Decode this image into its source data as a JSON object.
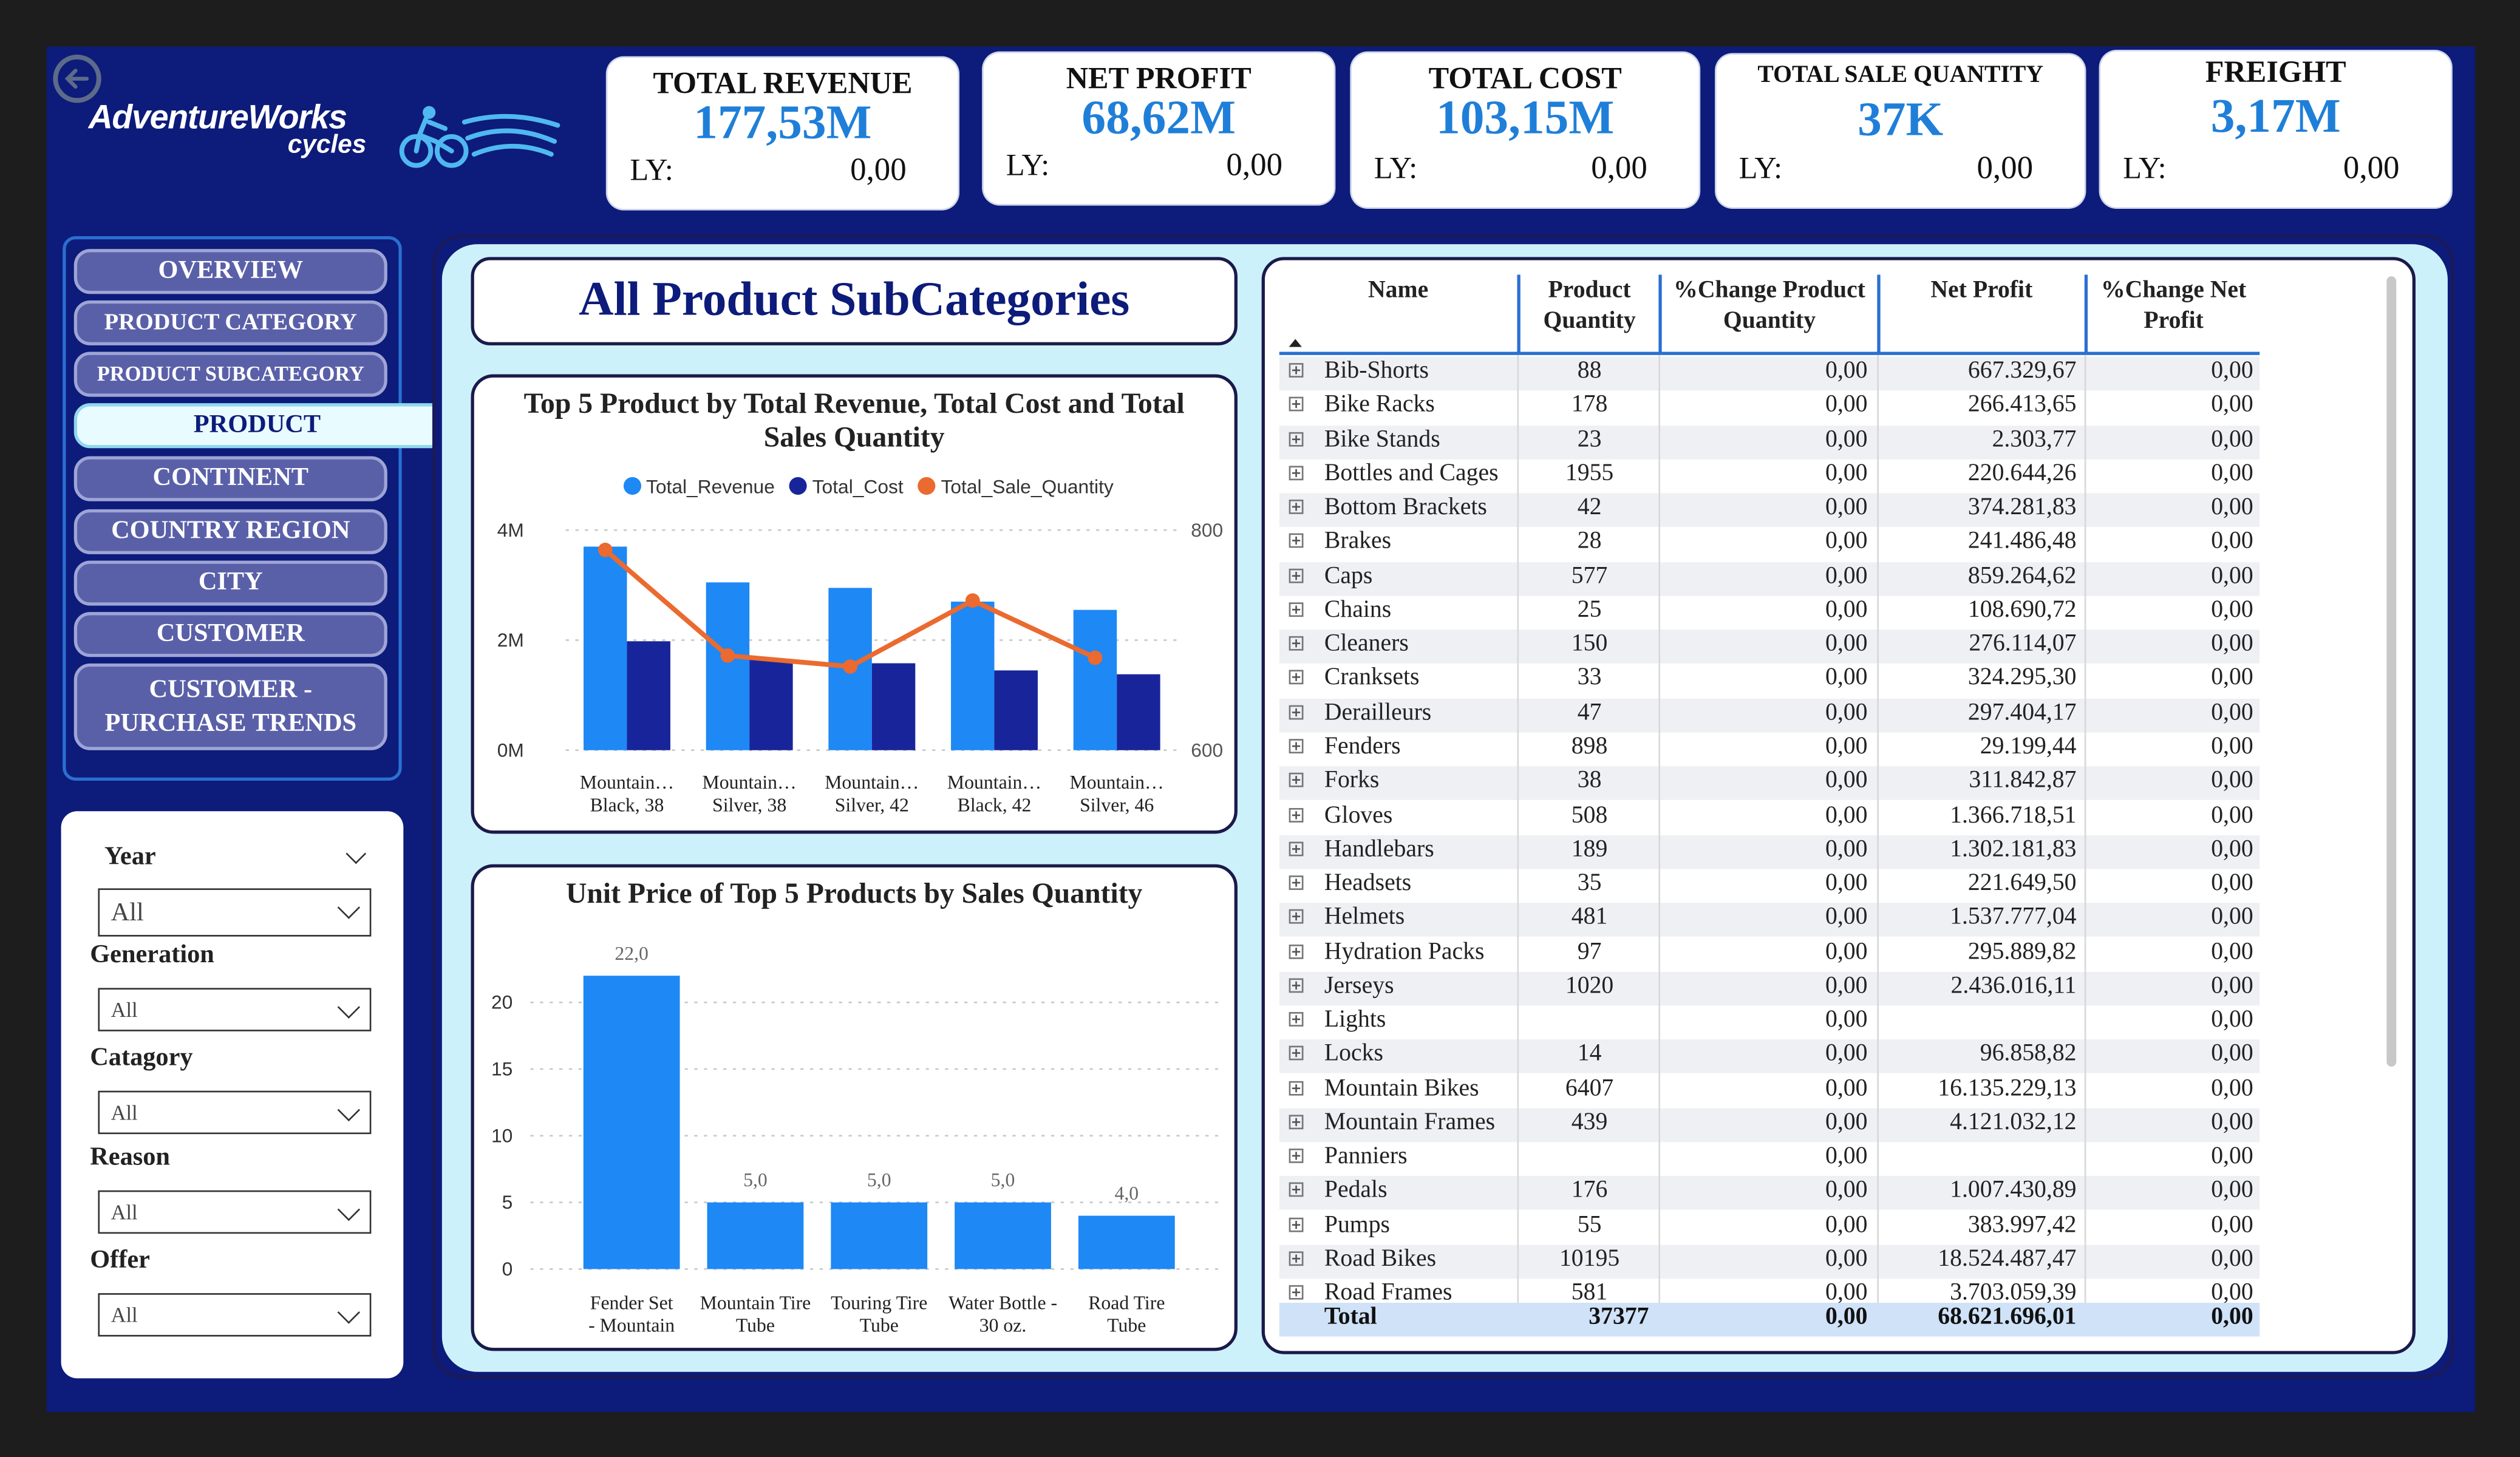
{
  "brand": {
    "name": "AdventureWorks",
    "sub": "cycles"
  },
  "kpis": [
    {
      "title": "TOTAL REVENUE",
      "value": "177,53M",
      "ly_label": "LY:",
      "ly_value": "0,00"
    },
    {
      "title": "NET PROFIT",
      "value": "68,62M",
      "ly_label": "LY:",
      "ly_value": "0,00"
    },
    {
      "title": "TOTAL COST",
      "value": "103,15M",
      "ly_label": "LY:",
      "ly_value": "0,00"
    },
    {
      "title": "TOTAL SALE QUANTITY",
      "value": "37K",
      "ly_label": "LY:",
      "ly_value": "0,00"
    },
    {
      "title": "FREIGHT",
      "value": "3,17M",
      "ly_label": "LY:",
      "ly_value": "0,00"
    }
  ],
  "nav": [
    {
      "label": "OVERVIEW"
    },
    {
      "label": "PRODUCT CATEGORY"
    },
    {
      "label": "PRODUCT SUBCATEGORY"
    },
    {
      "label": "PRODUCT"
    },
    {
      "label": "CONTINENT"
    },
    {
      "label": "COUNTRY REGION"
    },
    {
      "label": "CITY"
    },
    {
      "label": "CUSTOMER"
    },
    {
      "label": "CUSTOMER - PURCHASE TRENDS"
    }
  ],
  "nav_active": "PRODUCT",
  "filters": [
    {
      "label": "Year",
      "value": "All"
    },
    {
      "label": "Generation",
      "value": "All"
    },
    {
      "label": "Catagory",
      "value": "All"
    },
    {
      "label": "Reason",
      "value": "All"
    },
    {
      "label": "Offer",
      "value": "All"
    }
  ],
  "page_title": "All Product SubCategories",
  "chart_data": [
    {
      "type": "bar",
      "title": "Top 5 Product by Total Revenue, Total Cost and Total Sales Quantity",
      "categories": [
        "Mountain… Black, 38",
        "Mountain… Silver, 38",
        "Mountain… Silver, 42",
        "Mountain… Black, 42",
        "Mountain… Silver, 46"
      ],
      "series": [
        {
          "name": "Total_Revenue",
          "kind": "bar",
          "axis": "left",
          "color": "#1e88f5",
          "values": [
            3700000,
            3050000,
            2950000,
            2700000,
            2550000
          ]
        },
        {
          "name": "Total_Cost",
          "kind": "bar",
          "axis": "left",
          "color": "#18259a",
          "values": [
            1980000,
            1640000,
            1580000,
            1450000,
            1380000
          ]
        },
        {
          "name": "Total_Sale_Quantity",
          "kind": "line",
          "axis": "right",
          "color": "#ea6a2f",
          "values": [
            782,
            686,
            676,
            736,
            684
          ]
        }
      ],
      "y_ticks": [
        "4M",
        "2M",
        "0M"
      ],
      "y_right_ticks": [
        "800",
        "600"
      ],
      "ylim": [
        0,
        4000000
      ],
      "ylim_right": [
        600,
        800
      ],
      "grid": true,
      "legend": "top"
    },
    {
      "type": "bar",
      "title": "Unit Price of Top 5 Products by Sales Quantity",
      "categories": [
        "Fender Set - Mountain",
        "Mountain Tire Tube",
        "Touring Tire Tube",
        "Water Bottle - 30 oz.",
        "Road Tire Tube"
      ],
      "values": [
        22.0,
        5.0,
        5.0,
        5.0,
        4.0
      ],
      "data_labels": [
        "22,0",
        "5,0",
        "5,0",
        "5,0",
        "4,0"
      ],
      "y_ticks": [
        "20",
        "15",
        "10",
        "5",
        "0"
      ],
      "ylim": [
        0,
        24
      ],
      "color": "#1e88f5",
      "grid": true
    }
  ],
  "table": {
    "headers": [
      "Name",
      "Product Quantity",
      "%Change Product Quantity",
      "Net Profit",
      "%Change Net Profit"
    ],
    "rows": [
      [
        "Bib-Shorts",
        "88",
        "0,00",
        "667.329,67",
        "0,00"
      ],
      [
        "Bike Racks",
        "178",
        "0,00",
        "266.413,65",
        "0,00"
      ],
      [
        "Bike Stands",
        "23",
        "0,00",
        "2.303,77",
        "0,00"
      ],
      [
        "Bottles and Cages",
        "1955",
        "0,00",
        "220.644,26",
        "0,00"
      ],
      [
        "Bottom Brackets",
        "42",
        "0,00",
        "374.281,83",
        "0,00"
      ],
      [
        "Brakes",
        "28",
        "0,00",
        "241.486,48",
        "0,00"
      ],
      [
        "Caps",
        "577",
        "0,00",
        "859.264,62",
        "0,00"
      ],
      [
        "Chains",
        "25",
        "0,00",
        "108.690,72",
        "0,00"
      ],
      [
        "Cleaners",
        "150",
        "0,00",
        "276.114,07",
        "0,00"
      ],
      [
        "Cranksets",
        "33",
        "0,00",
        "324.295,30",
        "0,00"
      ],
      [
        "Derailleurs",
        "47",
        "0,00",
        "297.404,17",
        "0,00"
      ],
      [
        "Fenders",
        "898",
        "0,00",
        "29.199,44",
        "0,00"
      ],
      [
        "Forks",
        "38",
        "0,00",
        "311.842,87",
        "0,00"
      ],
      [
        "Gloves",
        "508",
        "0,00",
        "1.366.718,51",
        "0,00"
      ],
      [
        "Handlebars",
        "189",
        "0,00",
        "1.302.181,83",
        "0,00"
      ],
      [
        "Headsets",
        "35",
        "0,00",
        "221.649,50",
        "0,00"
      ],
      [
        "Helmets",
        "481",
        "0,00",
        "1.537.777,04",
        "0,00"
      ],
      [
        "Hydration Packs",
        "97",
        "0,00",
        "295.889,82",
        "0,00"
      ],
      [
        "Jerseys",
        "1020",
        "0,00",
        "2.436.016,11",
        "0,00"
      ],
      [
        "Lights",
        "",
        "0,00",
        "",
        "0,00"
      ],
      [
        "Locks",
        "14",
        "0,00",
        "96.858,82",
        "0,00"
      ],
      [
        "Mountain Bikes",
        "6407",
        "0,00",
        "16.135.229,13",
        "0,00"
      ],
      [
        "Mountain Frames",
        "439",
        "0,00",
        "4.121.032,12",
        "0,00"
      ],
      [
        "Panniers",
        "",
        "0,00",
        "",
        "0,00"
      ],
      [
        "Pedals",
        "176",
        "0,00",
        "1.007.430,89",
        "0,00"
      ],
      [
        "Pumps",
        "55",
        "0,00",
        "383.997,42",
        "0,00"
      ],
      [
        "Road Bikes",
        "10195",
        "0,00",
        "18.524.487,47",
        "0,00"
      ],
      [
        "Road Frames",
        "581",
        "0,00",
        "3.703.059,39",
        "0,00"
      ]
    ],
    "total": [
      "Total",
      "37377",
      "0,00",
      "68.621.696,01",
      "0,00"
    ]
  }
}
